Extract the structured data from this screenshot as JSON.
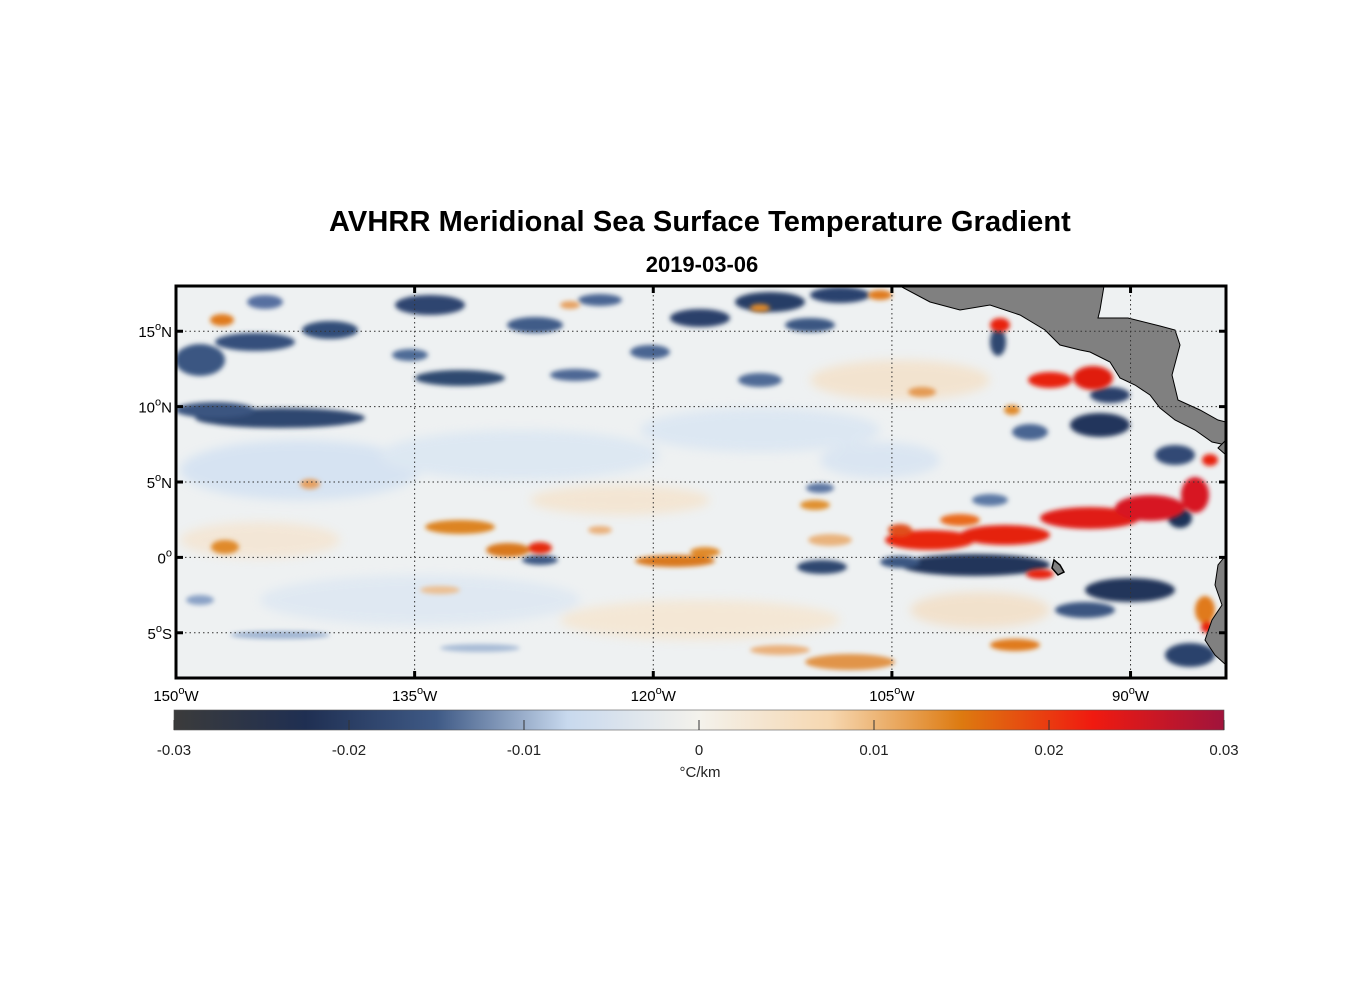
{
  "title": "AVHRR Meridional Sea Surface Temperature Gradient",
  "subtitle": "2019-03-06",
  "map": {
    "lon_range": [
      -150,
      -84
    ],
    "lat_range": [
      -8,
      18
    ],
    "lat_ticks": [
      {
        "value": 15,
        "label": "15",
        "suffix": "N"
      },
      {
        "value": 10,
        "label": "10",
        "suffix": "N"
      },
      {
        "value": 5,
        "label": "5",
        "suffix": "N"
      },
      {
        "value": 0,
        "label": "0",
        "suffix": ""
      },
      {
        "value": -5,
        "label": "5",
        "suffix": "S"
      }
    ],
    "lon_ticks": [
      {
        "value": -150,
        "label": "150",
        "suffix": "W"
      },
      {
        "value": -135,
        "label": "135",
        "suffix": "W"
      },
      {
        "value": -120,
        "label": "120",
        "suffix": "W"
      },
      {
        "value": -105,
        "label": "105",
        "suffix": "W"
      },
      {
        "value": -90,
        "label": "90",
        "suffix": "W"
      }
    ],
    "land_color": "#808080",
    "grid": "dotted"
  },
  "colorbar": {
    "range": [
      -0.03,
      0.03
    ],
    "ticks": [
      "-0.03",
      "-0.02",
      "-0.01",
      "0",
      "0.01",
      "0.02",
      "0.03"
    ],
    "units": "°C/km",
    "stops": [
      "#3b3b3b",
      "#1f2f52",
      "#3f5a86",
      "#c8d9ee",
      "#f4f2ec",
      "#f6d7b0",
      "#dd7a10",
      "#f01a10",
      "#a0143c"
    ]
  }
}
